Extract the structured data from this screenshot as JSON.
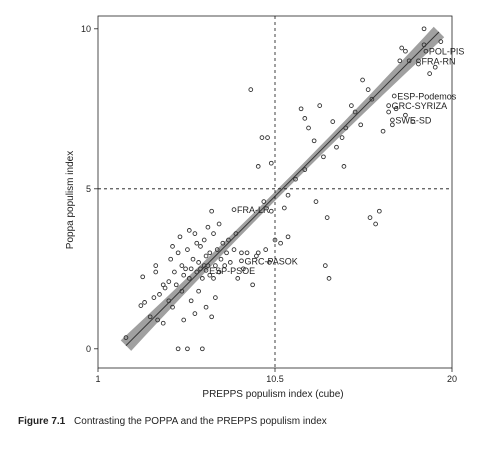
{
  "figure": {
    "label": "Figure 7.1",
    "caption": "Contrasting the POPPA and the PREPPS populism index"
  },
  "chart_data": {
    "type": "scatter",
    "xlabel": "PREPPS populism index (cube)",
    "ylabel": "Poppa populism index",
    "xlim": [
      1,
      20
    ],
    "ylim": [
      -0.6,
      10.4
    ],
    "xticks": [
      {
        "value": 1,
        "label": "1"
      },
      {
        "value": 10.5,
        "label": "10.5"
      },
      {
        "value": 20,
        "label": "20"
      }
    ],
    "yticks": [
      {
        "value": 0,
        "label": "0"
      },
      {
        "value": 5,
        "label": "5"
      },
      {
        "value": 10,
        "label": "10"
      }
    ],
    "reference_lines": {
      "x": 10.5,
      "y": 5
    },
    "fit": {
      "x1": 2.5,
      "y1": 0.1,
      "x2": 19.3,
      "y2": 9.9
    },
    "grid": false,
    "points": [
      [
        2.5,
        0.35
      ],
      [
        3.3,
        1.35
      ],
      [
        3.5,
        1.45
      ],
      [
        3.4,
        2.25
      ],
      [
        3.8,
        1.0
      ],
      [
        4.0,
        1.6
      ],
      [
        4.1,
        2.4
      ],
      [
        4.1,
        2.6
      ],
      [
        4.2,
        0.9
      ],
      [
        4.3,
        1.7
      ],
      [
        4.5,
        2.0
      ],
      [
        4.5,
        0.8
      ],
      [
        4.6,
        1.9
      ],
      [
        4.8,
        2.1
      ],
      [
        4.8,
        1.5
      ],
      [
        4.9,
        2.8
      ],
      [
        5.0,
        1.3
      ],
      [
        5.1,
        2.4
      ],
      [
        5.0,
        3.2
      ],
      [
        5.2,
        2.0
      ],
      [
        5.3,
        3.0
      ],
      [
        5.3,
        0.0
      ],
      [
        5.4,
        3.5
      ],
      [
        5.5,
        1.8
      ],
      [
        5.5,
        2.6
      ],
      [
        5.6,
        2.3
      ],
      [
        5.6,
        0.9
      ],
      [
        5.7,
        2.5
      ],
      [
        5.8,
        3.1
      ],
      [
        5.8,
        0.0
      ],
      [
        5.9,
        2.2
      ],
      [
        5.9,
        3.7
      ],
      [
        6.0,
        2.5
      ],
      [
        6.0,
        1.5
      ],
      [
        6.1,
        2.8
      ],
      [
        6.2,
        3.6
      ],
      [
        6.2,
        1.1
      ],
      [
        6.3,
        2.4
      ],
      [
        6.3,
        3.3
      ],
      [
        6.4,
        2.7
      ],
      [
        6.4,
        1.8
      ],
      [
        6.5,
        3.2
      ],
      [
        6.5,
        2.5
      ],
      [
        6.6,
        2.2
      ],
      [
        6.6,
        0.0
      ],
      [
        6.7,
        2.6
      ],
      [
        6.7,
        3.4
      ],
      [
        6.8,
        2.9
      ],
      [
        6.8,
        1.3
      ],
      [
        6.9,
        3.8
      ],
      [
        6.9,
        2.6
      ],
      [
        7.0,
        3.0
      ],
      [
        7.0,
        2.3
      ],
      [
        7.1,
        4.3
      ],
      [
        7.1,
        1.0
      ],
      [
        7.2,
        3.6
      ],
      [
        7.2,
        2.2
      ],
      [
        7.3,
        2.6
      ],
      [
        7.3,
        1.6
      ],
      [
        7.4,
        3.1
      ],
      [
        7.5,
        2.4
      ],
      [
        7.5,
        3.9
      ],
      [
        7.6,
        2.8
      ],
      [
        7.7,
        3.3
      ],
      [
        7.8,
        2.6
      ],
      [
        7.9,
        3.0
      ],
      [
        8.0,
        3.4
      ],
      [
        8.1,
        2.7
      ],
      [
        8.3,
        3.1
      ],
      [
        8.4,
        3.6
      ],
      [
        8.5,
        2.2
      ],
      [
        8.7,
        3.0
      ],
      [
        8.8,
        2.5
      ],
      [
        9.0,
        3.0
      ],
      [
        9.3,
        2.0
      ],
      [
        9.6,
        3.0
      ],
      [
        9.2,
        8.1
      ],
      [
        9.6,
        5.7
      ],
      [
        9.8,
        6.6
      ],
      [
        10.1,
        6.6
      ],
      [
        10.3,
        5.8
      ],
      [
        10.5,
        3.4
      ],
      [
        10.8,
        3.3
      ],
      [
        10.2,
        2.7
      ],
      [
        10.3,
        4.3
      ],
      [
        9.9,
        4.6
      ],
      [
        11.0,
        4.4
      ],
      [
        11.2,
        4.8
      ],
      [
        11.6,
        5.3
      ],
      [
        11.9,
        7.5
      ],
      [
        12.1,
        7.2
      ],
      [
        12.3,
        6.9
      ],
      [
        12.1,
        5.6
      ],
      [
        12.6,
        6.5
      ],
      [
        12.7,
        4.6
      ],
      [
        12.9,
        7.6
      ],
      [
        13.1,
        6.0
      ],
      [
        13.3,
        4.1
      ],
      [
        13.4,
        2.2
      ],
      [
        13.2,
        2.6
      ],
      [
        13.6,
        7.1
      ],
      [
        13.8,
        6.3
      ],
      [
        14.1,
        6.6
      ],
      [
        14.3,
        6.9
      ],
      [
        14.2,
        5.7
      ],
      [
        14.6,
        7.6
      ],
      [
        14.8,
        7.4
      ],
      [
        15.1,
        7.0
      ],
      [
        15.2,
        8.4
      ],
      [
        15.5,
        8.1
      ],
      [
        15.7,
        7.8
      ],
      [
        15.9,
        3.9
      ],
      [
        15.6,
        4.1
      ],
      [
        16.1,
        4.3
      ],
      [
        16.3,
        6.8
      ],
      [
        16.6,
        7.4
      ],
      [
        16.8,
        7.0
      ],
      [
        17.0,
        7.5
      ],
      [
        17.2,
        9.0
      ],
      [
        17.3,
        9.4
      ],
      [
        17.5,
        9.3
      ],
      [
        17.7,
        9.0
      ],
      [
        17.5,
        7.3
      ],
      [
        17.9,
        7.1
      ],
      [
        18.2,
        8.9
      ],
      [
        18.5,
        9.5
      ],
      [
        18.8,
        8.6
      ],
      [
        19.1,
        8.8
      ],
      [
        19.4,
        9.6
      ],
      [
        18.5,
        10.0
      ],
      [
        11.2,
        3.5
      ],
      [
        9.5,
        2.9
      ],
      [
        10.0,
        3.1
      ]
    ],
    "annotations": [
      {
        "text": "POL-PIS",
        "x": 18.6,
        "y": 9.3
      },
      {
        "text": "FRA-RN",
        "x": 18.2,
        "y": 9.0
      },
      {
        "text": "ESP-Podemos",
        "x": 16.9,
        "y": 7.9
      },
      {
        "text": "GRC-SYRIZA",
        "x": 16.6,
        "y": 7.6
      },
      {
        "text": "SWE-SD",
        "x": 16.8,
        "y": 7.15
      },
      {
        "text": "FRA-LR",
        "x": 8.3,
        "y": 4.35
      },
      {
        "text": "GRC-PASOK",
        "x": 8.7,
        "y": 2.75
      },
      {
        "text": "ESP-PSOE",
        "x": 6.8,
        "y": 2.45
      }
    ]
  }
}
